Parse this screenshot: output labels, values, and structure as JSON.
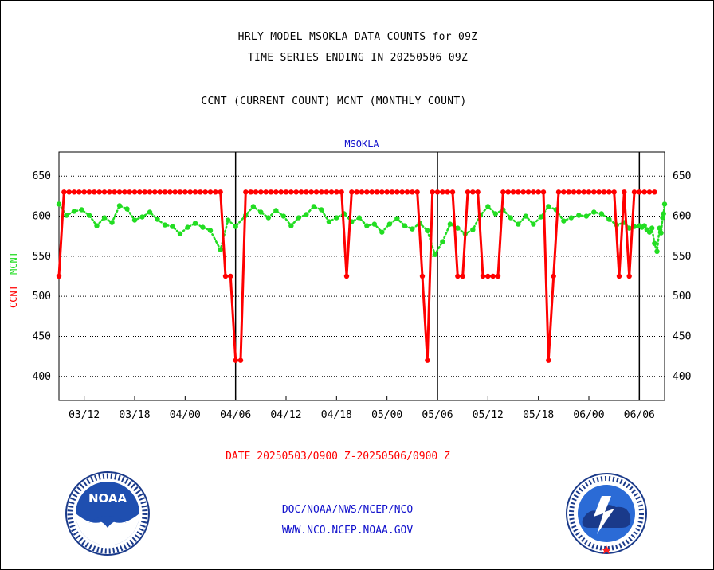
{
  "header": {
    "line1": "HRLY MODEL MSOKLA DATA COUNTS for 09Z",
    "line2": "TIME SERIES ENDING IN 20250506 09Z",
    "line3": "CCNT (CURRENT COUNT) MCNT (MONTHLY COUNT)"
  },
  "footer": {
    "date_range": "DATE 20250503/0900 Z-20250506/0900 Z",
    "link1": "DOC/NOAA/NWS/NCEP/NCO",
    "link2": "WWW.NCO.NCEP.NOAA.GOV"
  },
  "logos": {
    "noaa_left": "NOAA",
    "noaa_ring": "NATIONAL OCEANIC AND ATMOSPHERIC ADMINISTRATION · U.S. DEPARTMENT OF COMMERCE",
    "nws_ring": "NATIONAL WEATHER SERVICE"
  },
  "colors": {
    "ccnt": "#ff0000",
    "mcnt": "#22dd22",
    "link": "#1010cc",
    "panel_title": "#1010cc"
  },
  "chart_data": {
    "type": "line",
    "title": "MSOKLA",
    "ylabel_ccnt": "CCNT",
    "ylabel_mcnt": "MCNT",
    "ylim": [
      370,
      680
    ],
    "yticks": [
      400,
      450,
      500,
      550,
      600,
      650
    ],
    "grid": true,
    "x_tick_labels": [
      "03/12",
      "03/18",
      "04/00",
      "04/06",
      "04/12",
      "04/18",
      "05/00",
      "05/06",
      "05/12",
      "05/18",
      "06/00",
      "06/06"
    ],
    "x_tick_index": [
      5,
      15,
      25,
      35,
      45,
      55,
      65,
      75,
      85,
      95,
      105,
      115
    ],
    "x_index_range": [
      0,
      120
    ],
    "day_separators_index": [
      35,
      75,
      115
    ],
    "series": [
      {
        "name": "CCNT",
        "values": [
          525,
          630,
          630,
          630,
          630,
          630,
          630,
          630,
          630,
          630,
          630,
          630,
          630,
          630,
          630,
          630,
          630,
          630,
          630,
          630,
          630,
          630,
          630,
          630,
          630,
          630,
          630,
          630,
          630,
          630,
          630,
          630,
          630,
          525,
          525,
          420,
          420,
          630,
          630,
          630,
          630,
          630,
          630,
          630,
          630,
          630,
          630,
          630,
          630,
          630,
          630,
          630,
          630,
          630,
          630,
          630,
          630,
          525,
          630,
          630,
          630,
          630,
          630,
          630,
          630,
          630,
          630,
          630,
          630,
          630,
          630,
          630,
          525,
          420,
          630,
          630,
          630,
          630,
          630,
          525,
          525,
          630,
          630,
          630,
          525,
          525,
          525,
          525,
          630,
          630,
          630,
          630,
          630,
          630,
          630,
          630,
          630,
          420,
          525,
          630,
          630,
          630,
          630,
          630,
          630,
          630,
          630,
          630,
          630,
          630,
          630,
          525,
          630,
          525,
          630,
          630,
          630,
          630,
          630
        ]
      },
      {
        "name": "MCNT",
        "values": [
          615,
          601,
          606,
          608,
          601,
          588,
          598,
          592,
          613,
          609,
          595,
          599,
          605,
          596,
          589,
          587,
          578,
          586,
          591,
          586,
          582,
          558,
          595,
          587,
          601,
          612,
          605,
          598,
          607,
          600,
          588,
          598,
          602,
          612,
          608,
          593,
          598,
          603,
          593,
          598,
          588,
          590,
          580,
          590,
          597,
          588,
          584,
          591,
          582,
          552,
          568,
          590,
          585,
          578,
          583,
          601,
          612,
          603,
          608,
          598,
          590,
          600,
          590,
          599,
          612,
          608,
          594,
          598,
          601,
          600,
          605,
          603,
          596,
          589,
          592,
          585,
          587,
          588,
          586,
          588,
          583,
          580,
          585,
          566,
          556,
          585,
          579,
          598,
          603,
          615
        ]
      }
    ],
    "mcnt_x_index": [
      0,
      1.5,
      3,
      4.5,
      6,
      7.5,
      9,
      10.5,
      12,
      13.5,
      15,
      16.5,
      18,
      19.5,
      21,
      22.5,
      24,
      25.5,
      27,
      28.5,
      30,
      32,
      33.5,
      35,
      37,
      38.5,
      40,
      41.5,
      43,
      44.5,
      46,
      47.5,
      49,
      50.5,
      52,
      53.5,
      55,
      56.5,
      58,
      59.5,
      61,
      62.5,
      64,
      65.5,
      67,
      68.5,
      70,
      71.5,
      73,
      74.5,
      76,
      77.5,
      79,
      80.5,
      82,
      83.5,
      85,
      86.5,
      88,
      89.5,
      91,
      92.5,
      94,
      95.5,
      97,
      98.5,
      100,
      101.5,
      103,
      104.5,
      106,
      107.5,
      109,
      110.5,
      112,
      113,
      114,
      115,
      115.5,
      116,
      116.5,
      117,
      117.5,
      118,
      118.5,
      119,
      119.3,
      119.6,
      119.8,
      120
    ]
  }
}
